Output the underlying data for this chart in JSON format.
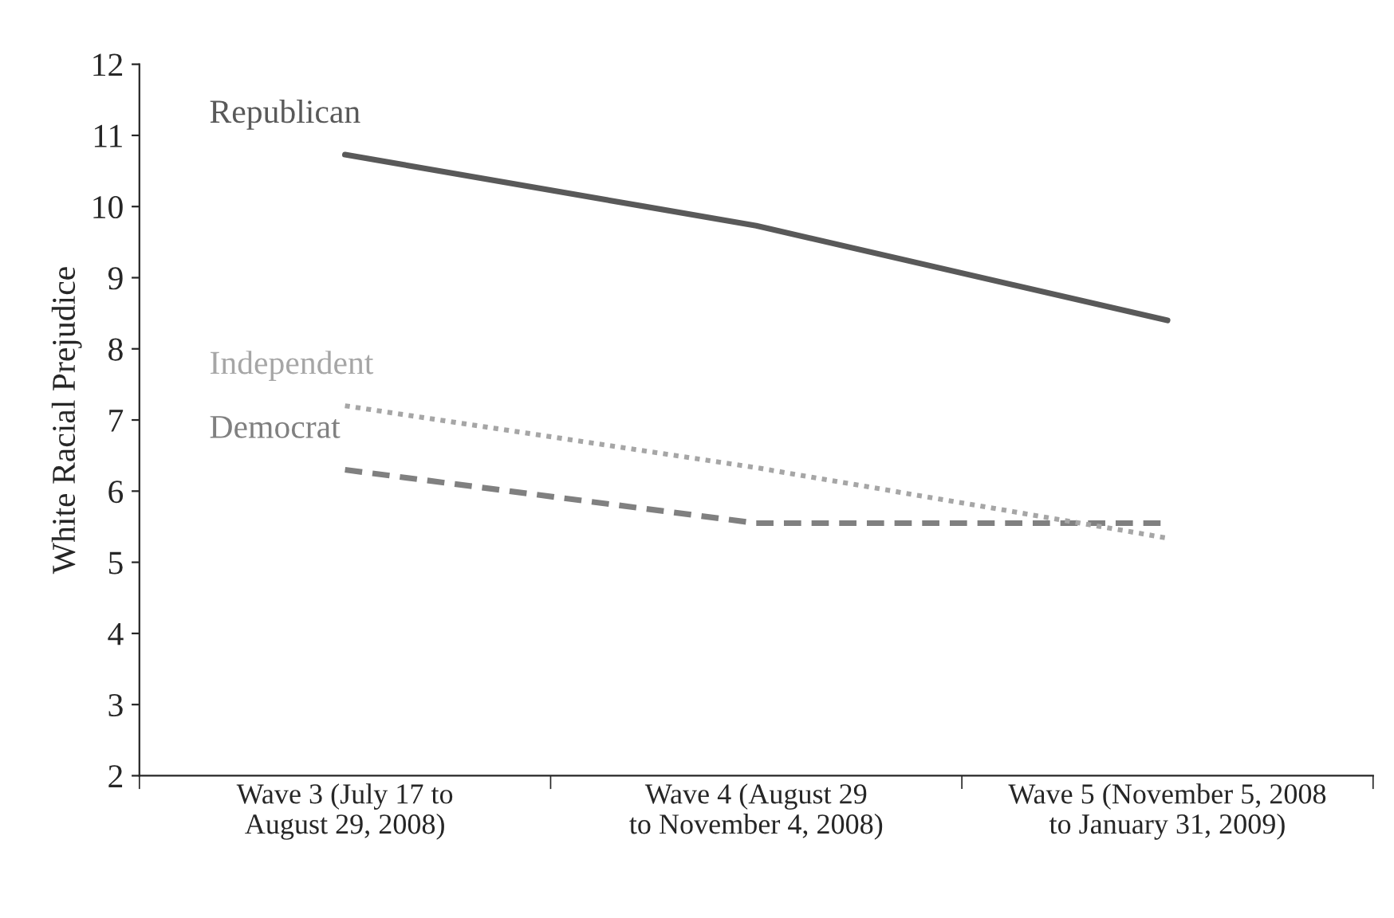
{
  "chart_data": {
    "type": "line",
    "ylabel": "White Racial Prejudice",
    "categories": [
      "Wave 3 (July 17 to\nAugust 29, 2008)",
      "Wave 4 (August 29\nto November 4, 2008)",
      "Wave 5 (November 5, 2008\nto January 31, 2009)"
    ],
    "series": [
      {
        "name": "Republican",
        "color": "#595959",
        "line_style": "solid",
        "values": [
          10.73,
          9.73,
          8.4
        ]
      },
      {
        "name": "Independent",
        "color": "#a6a6a6",
        "line_style": "dotted",
        "values": [
          7.2,
          6.33,
          5.34
        ]
      },
      {
        "name": "Democrat",
        "color": "#808080",
        "line_style": "dashed",
        "values": [
          6.3,
          5.55,
          5.55
        ]
      }
    ],
    "ylim": [
      2,
      12
    ],
    "yticks": [
      2,
      3,
      4,
      5,
      6,
      7,
      8,
      9,
      10,
      11,
      12
    ],
    "grid": false,
    "legend": false,
    "marker": "none"
  }
}
